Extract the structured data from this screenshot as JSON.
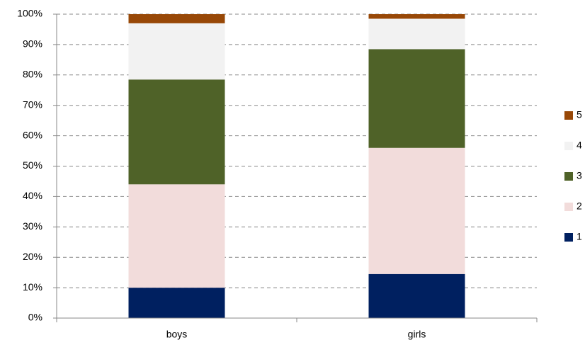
{
  "chart_data": {
    "type": "stacked_bar_100",
    "categories": [
      "boys",
      "girls"
    ],
    "series": [
      {
        "name": "1",
        "color": "#002060",
        "values": [
          10,
          14.5
        ]
      },
      {
        "name": "2",
        "color": "#f2dcdb",
        "values": [
          34,
          41.5
        ]
      },
      {
        "name": "3",
        "color": "#4f6228",
        "values": [
          34.5,
          32.5
        ]
      },
      {
        "name": "4",
        "color": "#f2f2f2",
        "values": [
          18.5,
          10
        ]
      },
      {
        "name": "5",
        "color": "#984807",
        "values": [
          3,
          1.5
        ]
      }
    ],
    "ylim": [
      0,
      100
    ],
    "yticks": [
      {
        "value": 0,
        "label": "0%"
      },
      {
        "value": 10,
        "label": "10%"
      },
      {
        "value": 20,
        "label": "20%"
      },
      {
        "value": 30,
        "label": "30%"
      },
      {
        "value": 40,
        "label": "40%"
      },
      {
        "value": 50,
        "label": "50%"
      },
      {
        "value": 60,
        "label": "60%"
      },
      {
        "value": 70,
        "label": "70%"
      },
      {
        "value": 80,
        "label": "80%"
      },
      {
        "value": 90,
        "label": "90%"
      },
      {
        "value": 100,
        "label": "100%"
      }
    ],
    "grid": true,
    "legend": "right"
  }
}
